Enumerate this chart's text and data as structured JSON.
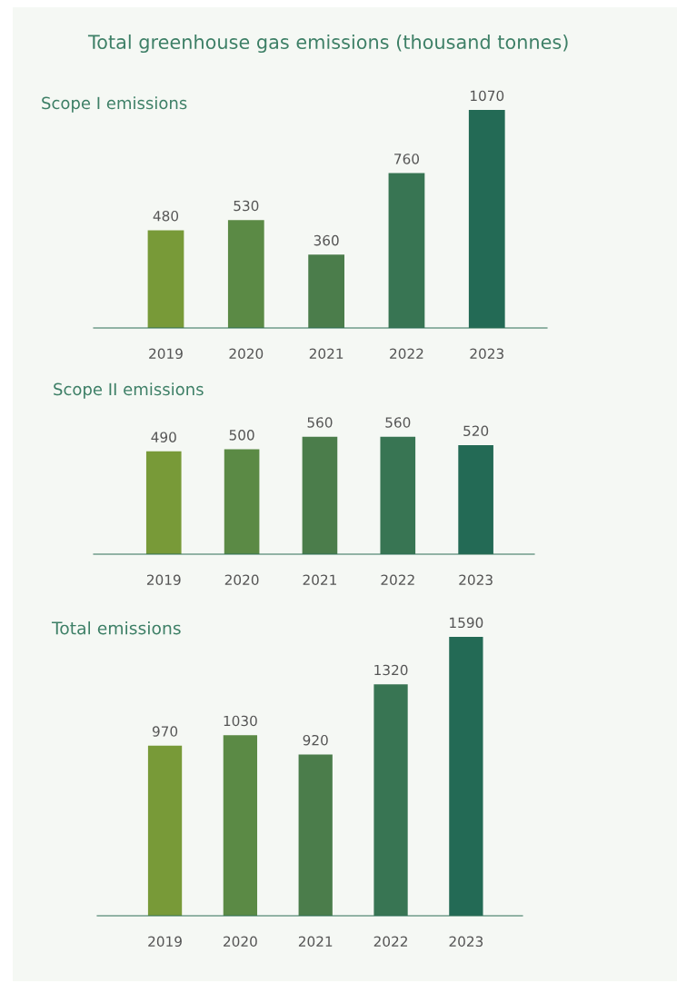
{
  "chart_data": [
    {
      "type": "bar",
      "title": "Total greenhouse gas emissions (thousand tonnes)",
      "subtitle": "Scope I emissions",
      "categories": [
        "2019",
        "2020",
        "2021",
        "2022",
        "2023"
      ],
      "values": [
        480,
        530,
        360,
        760,
        1070
      ],
      "colors": [
        "#789a38",
        "#5b8a45",
        "#4b7d4b",
        "#387553",
        "#236a55"
      ],
      "data_labels": true,
      "grid": false,
      "legend": false,
      "tick_labels": "x"
    },
    {
      "type": "bar",
      "title": "Scope II emissions",
      "categories": [
        "2019",
        "2020",
        "2021",
        "2022",
        "2023"
      ],
      "values": [
        490,
        500,
        560,
        560,
        520
      ],
      "colors": [
        "#789a38",
        "#5b8a45",
        "#4b7d4b",
        "#387553",
        "#236a55"
      ],
      "data_labels": true,
      "grid": false,
      "legend": false,
      "tick_labels": "x"
    },
    {
      "type": "bar",
      "title": "Total emissions",
      "categories": [
        "2019",
        "2020",
        "2021",
        "2022",
        "2023"
      ],
      "values": [
        970,
        1030,
        920,
        1320,
        1590
      ],
      "colors": [
        "#789a38",
        "#5b8a45",
        "#4b7d4b",
        "#387553",
        "#236a55"
      ],
      "data_labels": true,
      "grid": false,
      "legend": false,
      "tick_labels": "x"
    }
  ]
}
